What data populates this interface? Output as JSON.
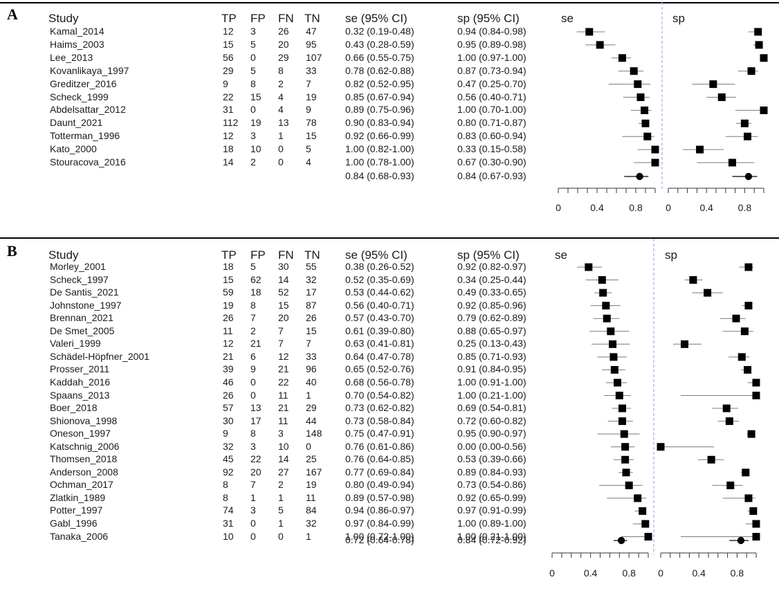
{
  "panels": [
    {
      "letter": "A",
      "headers": {
        "study": "Study",
        "tp": "TP",
        "fp": "FP",
        "fn": "FN",
        "tn": "TN",
        "se": "se (95% CI)",
        "sp": "sp (95% CI)",
        "plot_se": "se",
        "plot_sp": "sp"
      },
      "rows": [
        {
          "study": "Kamal_2014",
          "tp": "12",
          "fp": "3",
          "fn": "26",
          "tn": "47",
          "se": "0.32 (0.19-0.48)",
          "sp": "0.94 (0.84-0.98)"
        },
        {
          "study": "Haims_2003",
          "tp": "15",
          "fp": "5",
          "fn": "20",
          "tn": "95",
          "se": "0.43 (0.28-0.59)",
          "sp": "0.95 (0.89-0.98)"
        },
        {
          "study": "Lee_2013",
          "tp": "56",
          "fp": "0",
          "fn": "29",
          "tn": "107",
          "se": "0.66 (0.55-0.75)",
          "sp": "1.00 (0.97-1.00)"
        },
        {
          "study": "Kovanlikaya_1997",
          "tp": "29",
          "fp": "5",
          "fn": "8",
          "tn": "33",
          "se": "0.78 (0.62-0.88)",
          "sp": "0.87 (0.73-0.94)"
        },
        {
          "study": "Greditzer_2016",
          "tp": "9",
          "fp": "8",
          "fn": "2",
          "tn": "7",
          "se": "0.82 (0.52-0.95)",
          "sp": "0.47 (0.25-0.70)"
        },
        {
          "study": "Scheck_1999",
          "tp": "22",
          "fp": "15",
          "fn": "4",
          "tn": "19",
          "se": "0.85 (0.67-0.94)",
          "sp": "0.56 (0.40-0.71)"
        },
        {
          "study": "Abdelsattar_2012",
          "tp": "31",
          "fp": "0",
          "fn": "4",
          "tn": "9",
          "se": "0.89 (0.75-0.96)",
          "sp": "1.00 (0.70-1.00)"
        },
        {
          "study": "Daunt_2021",
          "tp": "112",
          "fp": "19",
          "fn": "13",
          "tn": "78",
          "se": "0.90 (0.83-0.94)",
          "sp": "0.80 (0.71-0.87)"
        },
        {
          "study": "Totterman_1996",
          "tp": "12",
          "fp": "3",
          "fn": "1",
          "tn": "15",
          "se": "0.92 (0.66-0.99)",
          "sp": "0.83 (0.60-0.94)"
        },
        {
          "study": "Kato_2000",
          "tp": "18",
          "fp": "10",
          "fn": "0",
          "tn": "5",
          "se": "1.00 (0.82-1.00)",
          "sp": "0.33 (0.15-0.58)"
        },
        {
          "study": "Stouracova_2016",
          "tp": "14",
          "fp": "2",
          "fn": "0",
          "tn": "4",
          "se": "1.00 (0.78-1.00)",
          "sp": "0.67 (0.30-0.90)"
        }
      ],
      "summary": {
        "se": "0.84 (0.68-0.93)",
        "sp": "0.84 (0.67-0.93)"
      },
      "ticks": [
        "0",
        "0.4",
        "0.8"
      ]
    },
    {
      "letter": "B",
      "headers": {
        "study": "Study",
        "tp": "TP",
        "fp": "FP",
        "fn": "FN",
        "tn": "TN",
        "se": "se (95% CI)",
        "sp": "sp (95% CI)",
        "plot_se": "se",
        "plot_sp": "sp"
      },
      "rows": [
        {
          "study": "Morley_2001",
          "tp": "18",
          "fp": "5",
          "fn": "30",
          "tn": "55",
          "se": "0.38 (0.26-0.52)",
          "sp": "0.92 (0.82-0.97)"
        },
        {
          "study": "Scheck_1997",
          "tp": "15",
          "fp": "62",
          "fn": "14",
          "tn": "32",
          "se": "0.52 (0.35-0.69)",
          "sp": "0.34 (0.25-0.44)"
        },
        {
          "study": "De Santis_2021",
          "tp": "59",
          "fp": "18",
          "fn": "52",
          "tn": "17",
          "se": "0.53 (0.44-0.62)",
          "sp": "0.49 (0.33-0.65)"
        },
        {
          "study": "Johnstone_1997",
          "tp": "19",
          "fp": "8",
          "fn": "15",
          "tn": "87",
          "se": "0.56 (0.40-0.71)",
          "sp": "0.92 (0.85-0.96)"
        },
        {
          "study": "Brennan_2021",
          "tp": "26",
          "fp": "7",
          "fn": "20",
          "tn": "26",
          "se": "0.57 (0.43-0.70)",
          "sp": "0.79 (0.62-0.89)"
        },
        {
          "study": "De Smet_2005",
          "tp": "11",
          "fp": "2",
          "fn": "7",
          "tn": "15",
          "se": "0.61 (0.39-0.80)",
          "sp": "0.88 (0.65-0.97)"
        },
        {
          "study": "Valeri_1999",
          "tp": "12",
          "fp": "21",
          "fn": "7",
          "tn": "7",
          "se": "0.63 (0.41-0.81)",
          "sp": "0.25 (0.13-0.43)"
        },
        {
          "study": "Schädel-Höpfner_2001",
          "tp": "21",
          "fp": "6",
          "fn": "12",
          "tn": "33",
          "se": "0.64 (0.47-0.78)",
          "sp": "0.85 (0.71-0.93)"
        },
        {
          "study": "Prosser_2011",
          "tp": "39",
          "fp": "9",
          "fn": "21",
          "tn": "96",
          "se": "0.65 (0.52-0.76)",
          "sp": "0.91 (0.84-0.95)"
        },
        {
          "study": "Kaddah_2016",
          "tp": "46",
          "fp": "0",
          "fn": "22",
          "tn": "40",
          "se": "0.68 (0.56-0.78)",
          "sp": "1.00 (0.91-1.00)"
        },
        {
          "study": "Spaans_2013",
          "tp": "26",
          "fp": "0",
          "fn": "11",
          "tn": "1",
          "se": "0.70 (0.54-0.82)",
          "sp": "1.00 (0.21-1.00)"
        },
        {
          "study": "Boer_2018",
          "tp": "57",
          "fp": "13",
          "fn": "21",
          "tn": "29",
          "se": "0.73 (0.62-0.82)",
          "sp": "0.69 (0.54-0.81)"
        },
        {
          "study": "Shionova_1998",
          "tp": "30",
          "fp": "17",
          "fn": "11",
          "tn": "44",
          "se": "0.73 (0.58-0.84)",
          "sp": "0.72 (0.60-0.82)"
        },
        {
          "study": "Oneson_1997",
          "tp": "9",
          "fp": "8",
          "fn": "3",
          "tn": "148",
          "se": "0.75 (0.47-0.91)",
          "sp": "0.95 (0.90-0.97)"
        },
        {
          "study": "Katschnig_2006",
          "tp": "32",
          "fp": "3",
          "fn": "10",
          "tn": "0",
          "se": "0.76 (0.61-0.86)",
          "sp": "0.00 (0.00-0.56)"
        },
        {
          "study": "Thomsen_2018",
          "tp": "45",
          "fp": "22",
          "fn": "14",
          "tn": "25",
          "se": "0.76 (0.64-0.85)",
          "sp": "0.53 (0.39-0.66)"
        },
        {
          "study": "Anderson_2008",
          "tp": "92",
          "fp": "20",
          "fn": "27",
          "tn": "167",
          "se": "0.77 (0.69-0.84)",
          "sp": "0.89 (0.84-0.93)"
        },
        {
          "study": "Ochman_2017",
          "tp": "8",
          "fp": "7",
          "fn": "2",
          "tn": "19",
          "se": "0.80 (0.49-0.94)",
          "sp": "0.73 (0.54-0.86)"
        },
        {
          "study": "Zlatkin_1989",
          "tp": "8",
          "fp": "1",
          "fn": "1",
          "tn": "11",
          "se": "0.89 (0.57-0.98)",
          "sp": "0.92 (0.65-0.99)"
        },
        {
          "study": "Potter_1997",
          "tp": "74",
          "fp": "3",
          "fn": "5",
          "tn": "84",
          "se": "0.94 (0.86-0.97)",
          "sp": "0.97 (0.91-0.99)"
        },
        {
          "study": "Gabl_1996",
          "tp": "31",
          "fp": "0",
          "fn": "1",
          "tn": "32",
          "se": "0.97 (0.84-0.99)",
          "sp": "1.00 (0.89-1.00)"
        },
        {
          "study": "Tanaka_2006",
          "tp": "10",
          "fp": "0",
          "fn": "0",
          "tn": "1",
          "se": "1.00 (0.72-1.00)",
          "sp": "1.00 (0.21-1.00)"
        }
      ],
      "summary": {
        "se": "0.72 (0.64-0.78)",
        "sp": "0.84 (0.72-0.92)"
      },
      "ticks": [
        "0",
        "0.4",
        "0.8"
      ]
    }
  ],
  "colors": {
    "marker": "#000000",
    "ci_line": "#7a7a7a",
    "divider": "#a6a6ee",
    "axis": "#333333"
  },
  "chart_data": [
    {
      "type": "forest",
      "panel": "A",
      "xlim": [
        0,
        1
      ],
      "axis_ticks": [
        0,
        0.4,
        0.8
      ],
      "series": [
        {
          "name": "se",
          "points": [
            {
              "est": 0.32,
              "lo": 0.19,
              "hi": 0.48
            },
            {
              "est": 0.43,
              "lo": 0.28,
              "hi": 0.59
            },
            {
              "est": 0.66,
              "lo": 0.55,
              "hi": 0.75
            },
            {
              "est": 0.78,
              "lo": 0.62,
              "hi": 0.88
            },
            {
              "est": 0.82,
              "lo": 0.52,
              "hi": 0.95
            },
            {
              "est": 0.85,
              "lo": 0.67,
              "hi": 0.94
            },
            {
              "est": 0.89,
              "lo": 0.75,
              "hi": 0.96
            },
            {
              "est": 0.9,
              "lo": 0.83,
              "hi": 0.94
            },
            {
              "est": 0.92,
              "lo": 0.66,
              "hi": 0.99
            },
            {
              "est": 1.0,
              "lo": 0.82,
              "hi": 1.0
            },
            {
              "est": 1.0,
              "lo": 0.78,
              "hi": 1.0
            }
          ],
          "summary": {
            "est": 0.84,
            "lo": 0.68,
            "hi": 0.93
          }
        },
        {
          "name": "sp",
          "points": [
            {
              "est": 0.94,
              "lo": 0.84,
              "hi": 0.98
            },
            {
              "est": 0.95,
              "lo": 0.89,
              "hi": 0.98
            },
            {
              "est": 1.0,
              "lo": 0.97,
              "hi": 1.0
            },
            {
              "est": 0.87,
              "lo": 0.73,
              "hi": 0.94
            },
            {
              "est": 0.47,
              "lo": 0.25,
              "hi": 0.7
            },
            {
              "est": 0.56,
              "lo": 0.4,
              "hi": 0.71
            },
            {
              "est": 1.0,
              "lo": 0.7,
              "hi": 1.0
            },
            {
              "est": 0.8,
              "lo": 0.71,
              "hi": 0.87
            },
            {
              "est": 0.83,
              "lo": 0.6,
              "hi": 0.94
            },
            {
              "est": 0.33,
              "lo": 0.15,
              "hi": 0.58
            },
            {
              "est": 0.67,
              "lo": 0.3,
              "hi": 0.9
            }
          ],
          "summary": {
            "est": 0.84,
            "lo": 0.67,
            "hi": 0.93
          }
        }
      ]
    },
    {
      "type": "forest",
      "panel": "B",
      "xlim": [
        0,
        1
      ],
      "axis_ticks": [
        0,
        0.4,
        0.8
      ],
      "series": [
        {
          "name": "se",
          "points": [
            {
              "est": 0.38,
              "lo": 0.26,
              "hi": 0.52
            },
            {
              "est": 0.52,
              "lo": 0.35,
              "hi": 0.69
            },
            {
              "est": 0.53,
              "lo": 0.44,
              "hi": 0.62
            },
            {
              "est": 0.56,
              "lo": 0.4,
              "hi": 0.71
            },
            {
              "est": 0.57,
              "lo": 0.43,
              "hi": 0.7
            },
            {
              "est": 0.61,
              "lo": 0.39,
              "hi": 0.8
            },
            {
              "est": 0.63,
              "lo": 0.41,
              "hi": 0.81
            },
            {
              "est": 0.64,
              "lo": 0.47,
              "hi": 0.78
            },
            {
              "est": 0.65,
              "lo": 0.52,
              "hi": 0.76
            },
            {
              "est": 0.68,
              "lo": 0.56,
              "hi": 0.78
            },
            {
              "est": 0.7,
              "lo": 0.54,
              "hi": 0.82
            },
            {
              "est": 0.73,
              "lo": 0.62,
              "hi": 0.82
            },
            {
              "est": 0.73,
              "lo": 0.58,
              "hi": 0.84
            },
            {
              "est": 0.75,
              "lo": 0.47,
              "hi": 0.91
            },
            {
              "est": 0.76,
              "lo": 0.61,
              "hi": 0.86
            },
            {
              "est": 0.76,
              "lo": 0.64,
              "hi": 0.85
            },
            {
              "est": 0.77,
              "lo": 0.69,
              "hi": 0.84
            },
            {
              "est": 0.8,
              "lo": 0.49,
              "hi": 0.94
            },
            {
              "est": 0.89,
              "lo": 0.57,
              "hi": 0.98
            },
            {
              "est": 0.94,
              "lo": 0.86,
              "hi": 0.97
            },
            {
              "est": 0.97,
              "lo": 0.84,
              "hi": 0.99
            },
            {
              "est": 1.0,
              "lo": 0.72,
              "hi": 1.0
            }
          ],
          "summary": {
            "est": 0.72,
            "lo": 0.64,
            "hi": 0.78
          }
        },
        {
          "name": "sp",
          "points": [
            {
              "est": 0.92,
              "lo": 0.82,
              "hi": 0.97
            },
            {
              "est": 0.34,
              "lo": 0.25,
              "hi": 0.44
            },
            {
              "est": 0.49,
              "lo": 0.33,
              "hi": 0.65
            },
            {
              "est": 0.92,
              "lo": 0.85,
              "hi": 0.96
            },
            {
              "est": 0.79,
              "lo": 0.62,
              "hi": 0.89
            },
            {
              "est": 0.88,
              "lo": 0.65,
              "hi": 0.97
            },
            {
              "est": 0.25,
              "lo": 0.13,
              "hi": 0.43
            },
            {
              "est": 0.85,
              "lo": 0.71,
              "hi": 0.93
            },
            {
              "est": 0.91,
              "lo": 0.84,
              "hi": 0.95
            },
            {
              "est": 1.0,
              "lo": 0.91,
              "hi": 1.0
            },
            {
              "est": 1.0,
              "lo": 0.21,
              "hi": 1.0
            },
            {
              "est": 0.69,
              "lo": 0.54,
              "hi": 0.81
            },
            {
              "est": 0.72,
              "lo": 0.6,
              "hi": 0.82
            },
            {
              "est": 0.95,
              "lo": 0.9,
              "hi": 0.97
            },
            {
              "est": 0.0,
              "lo": 0.0,
              "hi": 0.56
            },
            {
              "est": 0.53,
              "lo": 0.39,
              "hi": 0.66
            },
            {
              "est": 0.89,
              "lo": 0.84,
              "hi": 0.93
            },
            {
              "est": 0.73,
              "lo": 0.54,
              "hi": 0.86
            },
            {
              "est": 0.92,
              "lo": 0.65,
              "hi": 0.99
            },
            {
              "est": 0.97,
              "lo": 0.91,
              "hi": 0.99
            },
            {
              "est": 1.0,
              "lo": 0.89,
              "hi": 1.0
            },
            {
              "est": 1.0,
              "lo": 0.21,
              "hi": 1.0
            }
          ],
          "summary": {
            "est": 0.84,
            "lo": 0.72,
            "hi": 0.92
          }
        }
      ]
    }
  ]
}
